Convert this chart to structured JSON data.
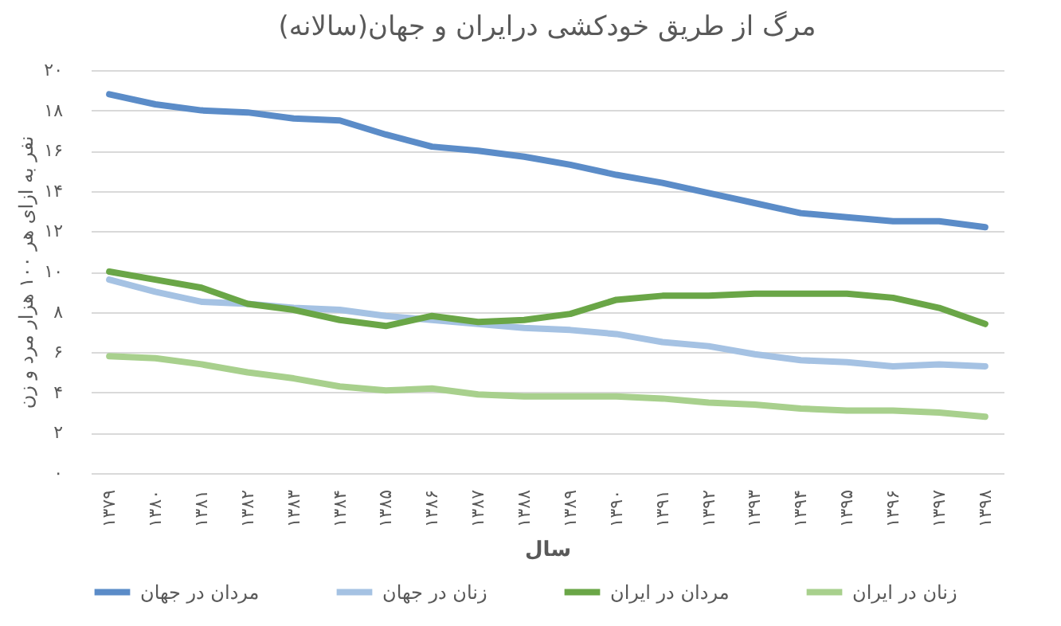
{
  "chart_data": {
    "type": "line",
    "title": "مرگ از طریق خودکشی درایران و جهان(سالانه)",
    "xlabel": "سال",
    "ylabel": "نفر به ازای هر ۱۰۰ هزار مرد و زن",
    "categories": [
      "۱۳۷۹",
      "۱۳۸۰",
      "۱۳۸۱",
      "۱۳۸۲",
      "۱۳۸۳",
      "۱۳۸۴",
      "۱۳۸۵",
      "۱۳۸۶",
      "۱۳۸۷",
      "۱۳۸۸",
      "۱۳۸۹",
      "۱۳۹۰",
      "۱۳۹۱",
      "۱۳۹۲",
      "۱۳۹۳",
      "۱۳۹۴",
      "۱۳۹۵",
      "۱۳۹۶",
      "۱۳۹۷",
      "۱۳۹۸"
    ],
    "series": [
      {
        "name": "مردان در جهان",
        "color": "#5b8cc8",
        "values": [
          18.8,
          18.3,
          18.0,
          17.9,
          17.6,
          17.5,
          16.8,
          16.2,
          16.0,
          15.7,
          15.3,
          14.8,
          14.4,
          13.9,
          13.4,
          12.9,
          12.7,
          12.5,
          12.5,
          12.2
        ]
      },
      {
        "name": "زنان در جهان",
        "color": "#a5c2e3",
        "values": [
          9.6,
          9.0,
          8.5,
          8.4,
          8.2,
          8.1,
          7.8,
          7.6,
          7.4,
          7.2,
          7.1,
          6.9,
          6.5,
          6.3,
          5.9,
          5.6,
          5.5,
          5.3,
          5.4,
          5.3
        ]
      },
      {
        "name": "مردان در ایران",
        "color": "#6aa647",
        "values": [
          10.0,
          9.6,
          9.2,
          8.4,
          8.1,
          7.6,
          7.3,
          7.8,
          7.5,
          7.6,
          7.9,
          8.6,
          8.8,
          8.8,
          8.9,
          8.9,
          8.9,
          8.7,
          8.2,
          7.4
        ]
      },
      {
        "name": "زنان در ایران",
        "color": "#a8d08d",
        "values": [
          5.8,
          5.7,
          5.4,
          5.0,
          4.7,
          4.3,
          4.1,
          4.2,
          3.9,
          3.8,
          3.8,
          3.8,
          3.7,
          3.5,
          3.4,
          3.2,
          3.1,
          3.1,
          3.0,
          2.8
        ]
      }
    ],
    "ylim": [
      0,
      20
    ],
    "yticks": [
      {
        "value": 0,
        "label": "۰"
      },
      {
        "value": 2,
        "label": "۲"
      },
      {
        "value": 4,
        "label": "۴"
      },
      {
        "value": 6,
        "label": "۶"
      },
      {
        "value": 8,
        "label": "۸"
      },
      {
        "value": 10,
        "label": "۱۰"
      },
      {
        "value": 12,
        "label": "۱۲"
      },
      {
        "value": 14,
        "label": "۱۴"
      },
      {
        "value": 16,
        "label": "۱۶"
      },
      {
        "value": 18,
        "label": "۱۸"
      },
      {
        "value": 20,
        "label": "۲۰"
      }
    ],
    "grid": "y",
    "legend": "bottom"
  }
}
